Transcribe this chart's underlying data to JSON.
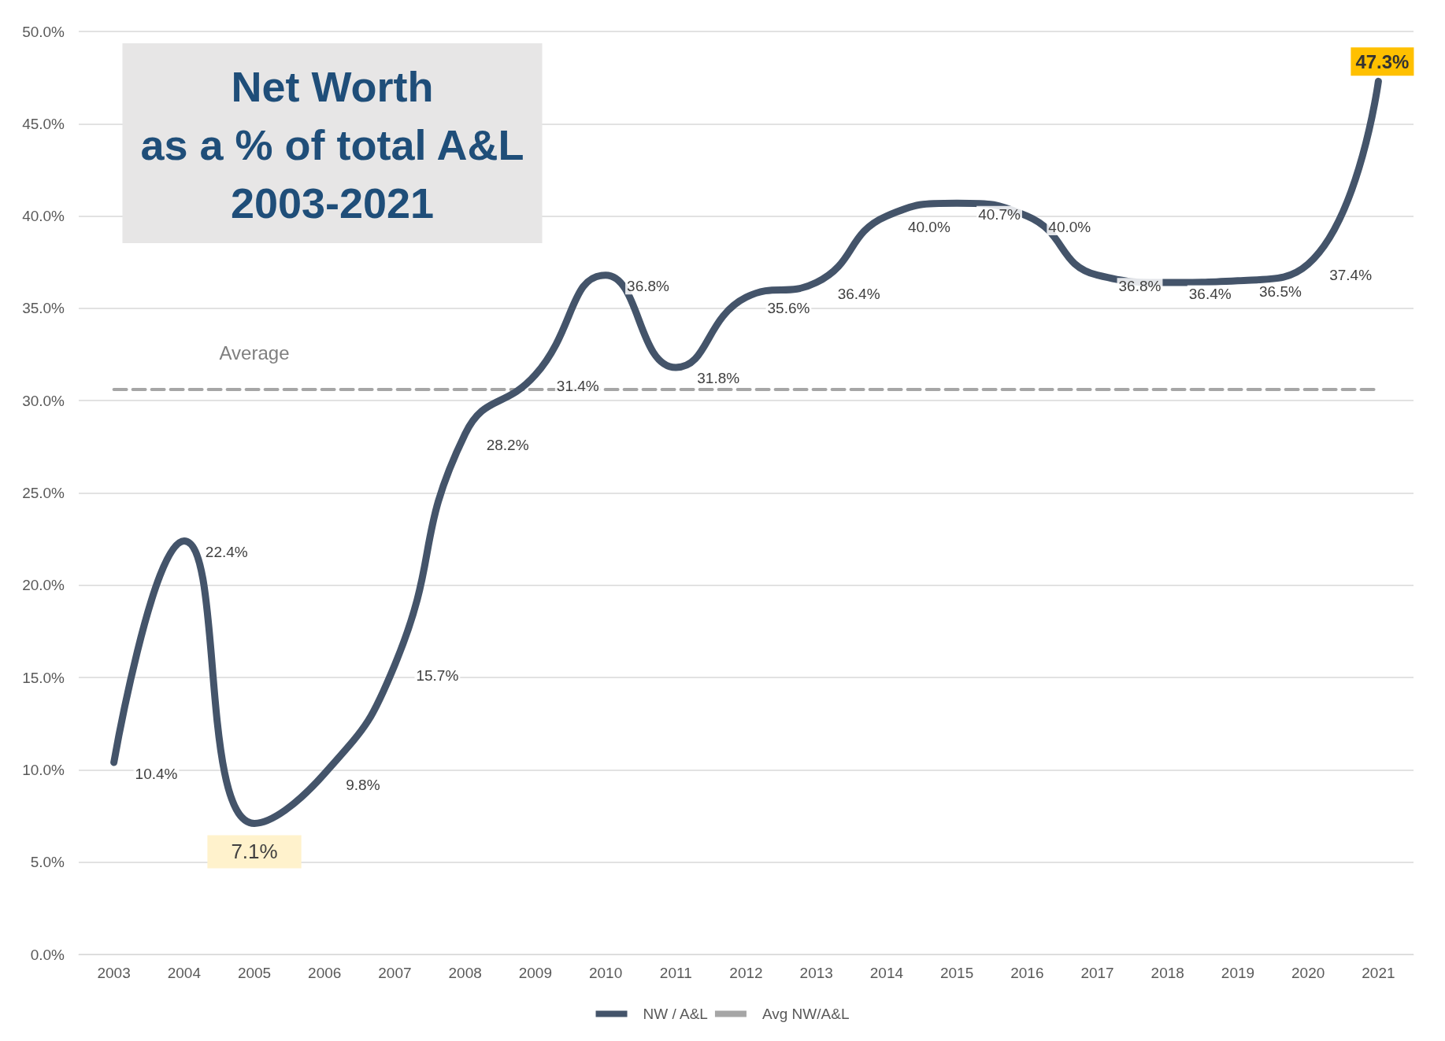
{
  "chart_data": {
    "type": "line",
    "title": "Net Worth\nas a % of total A&L\n2003-2021",
    "categories": [
      "2003",
      "2004",
      "2005",
      "2006",
      "2007",
      "2008",
      "2009",
      "2010",
      "2011",
      "2012",
      "2013",
      "2014",
      "2015",
      "2016",
      "2017",
      "2018",
      "2019",
      "2020",
      "2021"
    ],
    "series": [
      {
        "name": "NW / A&L",
        "color": "#44546a",
        "values": [
          10.4,
          22.4,
          7.1,
          9.8,
          15.7,
          28.2,
          31.4,
          36.8,
          31.8,
          35.6,
          36.4,
          40.0,
          40.7,
          40.0,
          36.8,
          36.4,
          36.5,
          37.4,
          47.3
        ],
        "value_labels": [
          "10.4%",
          "22.4%",
          "7.1%",
          "9.8%",
          "15.7%",
          "28.2%",
          "31.4%",
          "36.8%",
          "31.8%",
          "35.6%",
          "36.4%",
          "40.0%",
          "40.7%",
          "40.0%",
          "36.8%",
          "36.4%",
          "36.5%",
          "37.4%",
          "47.3%"
        ]
      },
      {
        "name": "Avg NW/A&L",
        "color": "#a6a6a6",
        "line_style": "dashed",
        "values": [
          30.6,
          30.6,
          30.6,
          30.6,
          30.6,
          30.6,
          30.6,
          30.6,
          30.6,
          30.6,
          30.6,
          30.6,
          30.6,
          30.6,
          30.6,
          30.6,
          30.6,
          30.6,
          30.6
        ]
      }
    ],
    "annotations": [
      {
        "text": "Average",
        "x": "2005",
        "y": 30.6
      }
    ],
    "ylim": [
      0,
      50
    ],
    "yticks": [
      {
        "value": 0,
        "label": "0.0%"
      },
      {
        "value": 5,
        "label": "5.0%"
      },
      {
        "value": 10,
        "label": "10.0%"
      },
      {
        "value": 15,
        "label": "15.0%"
      },
      {
        "value": 20,
        "label": "20.0%"
      },
      {
        "value": 25,
        "label": "25.0%"
      },
      {
        "value": 30,
        "label": "30.0%"
      },
      {
        "value": 35,
        "label": "35.0%"
      },
      {
        "value": 40,
        "label": "40.0%"
      },
      {
        "value": 45,
        "label": "45.0%"
      },
      {
        "value": 50,
        "label": "50.0%"
      }
    ],
    "grid": "y",
    "legend": "bottom",
    "marker": "none",
    "line_style": "solid"
  }
}
